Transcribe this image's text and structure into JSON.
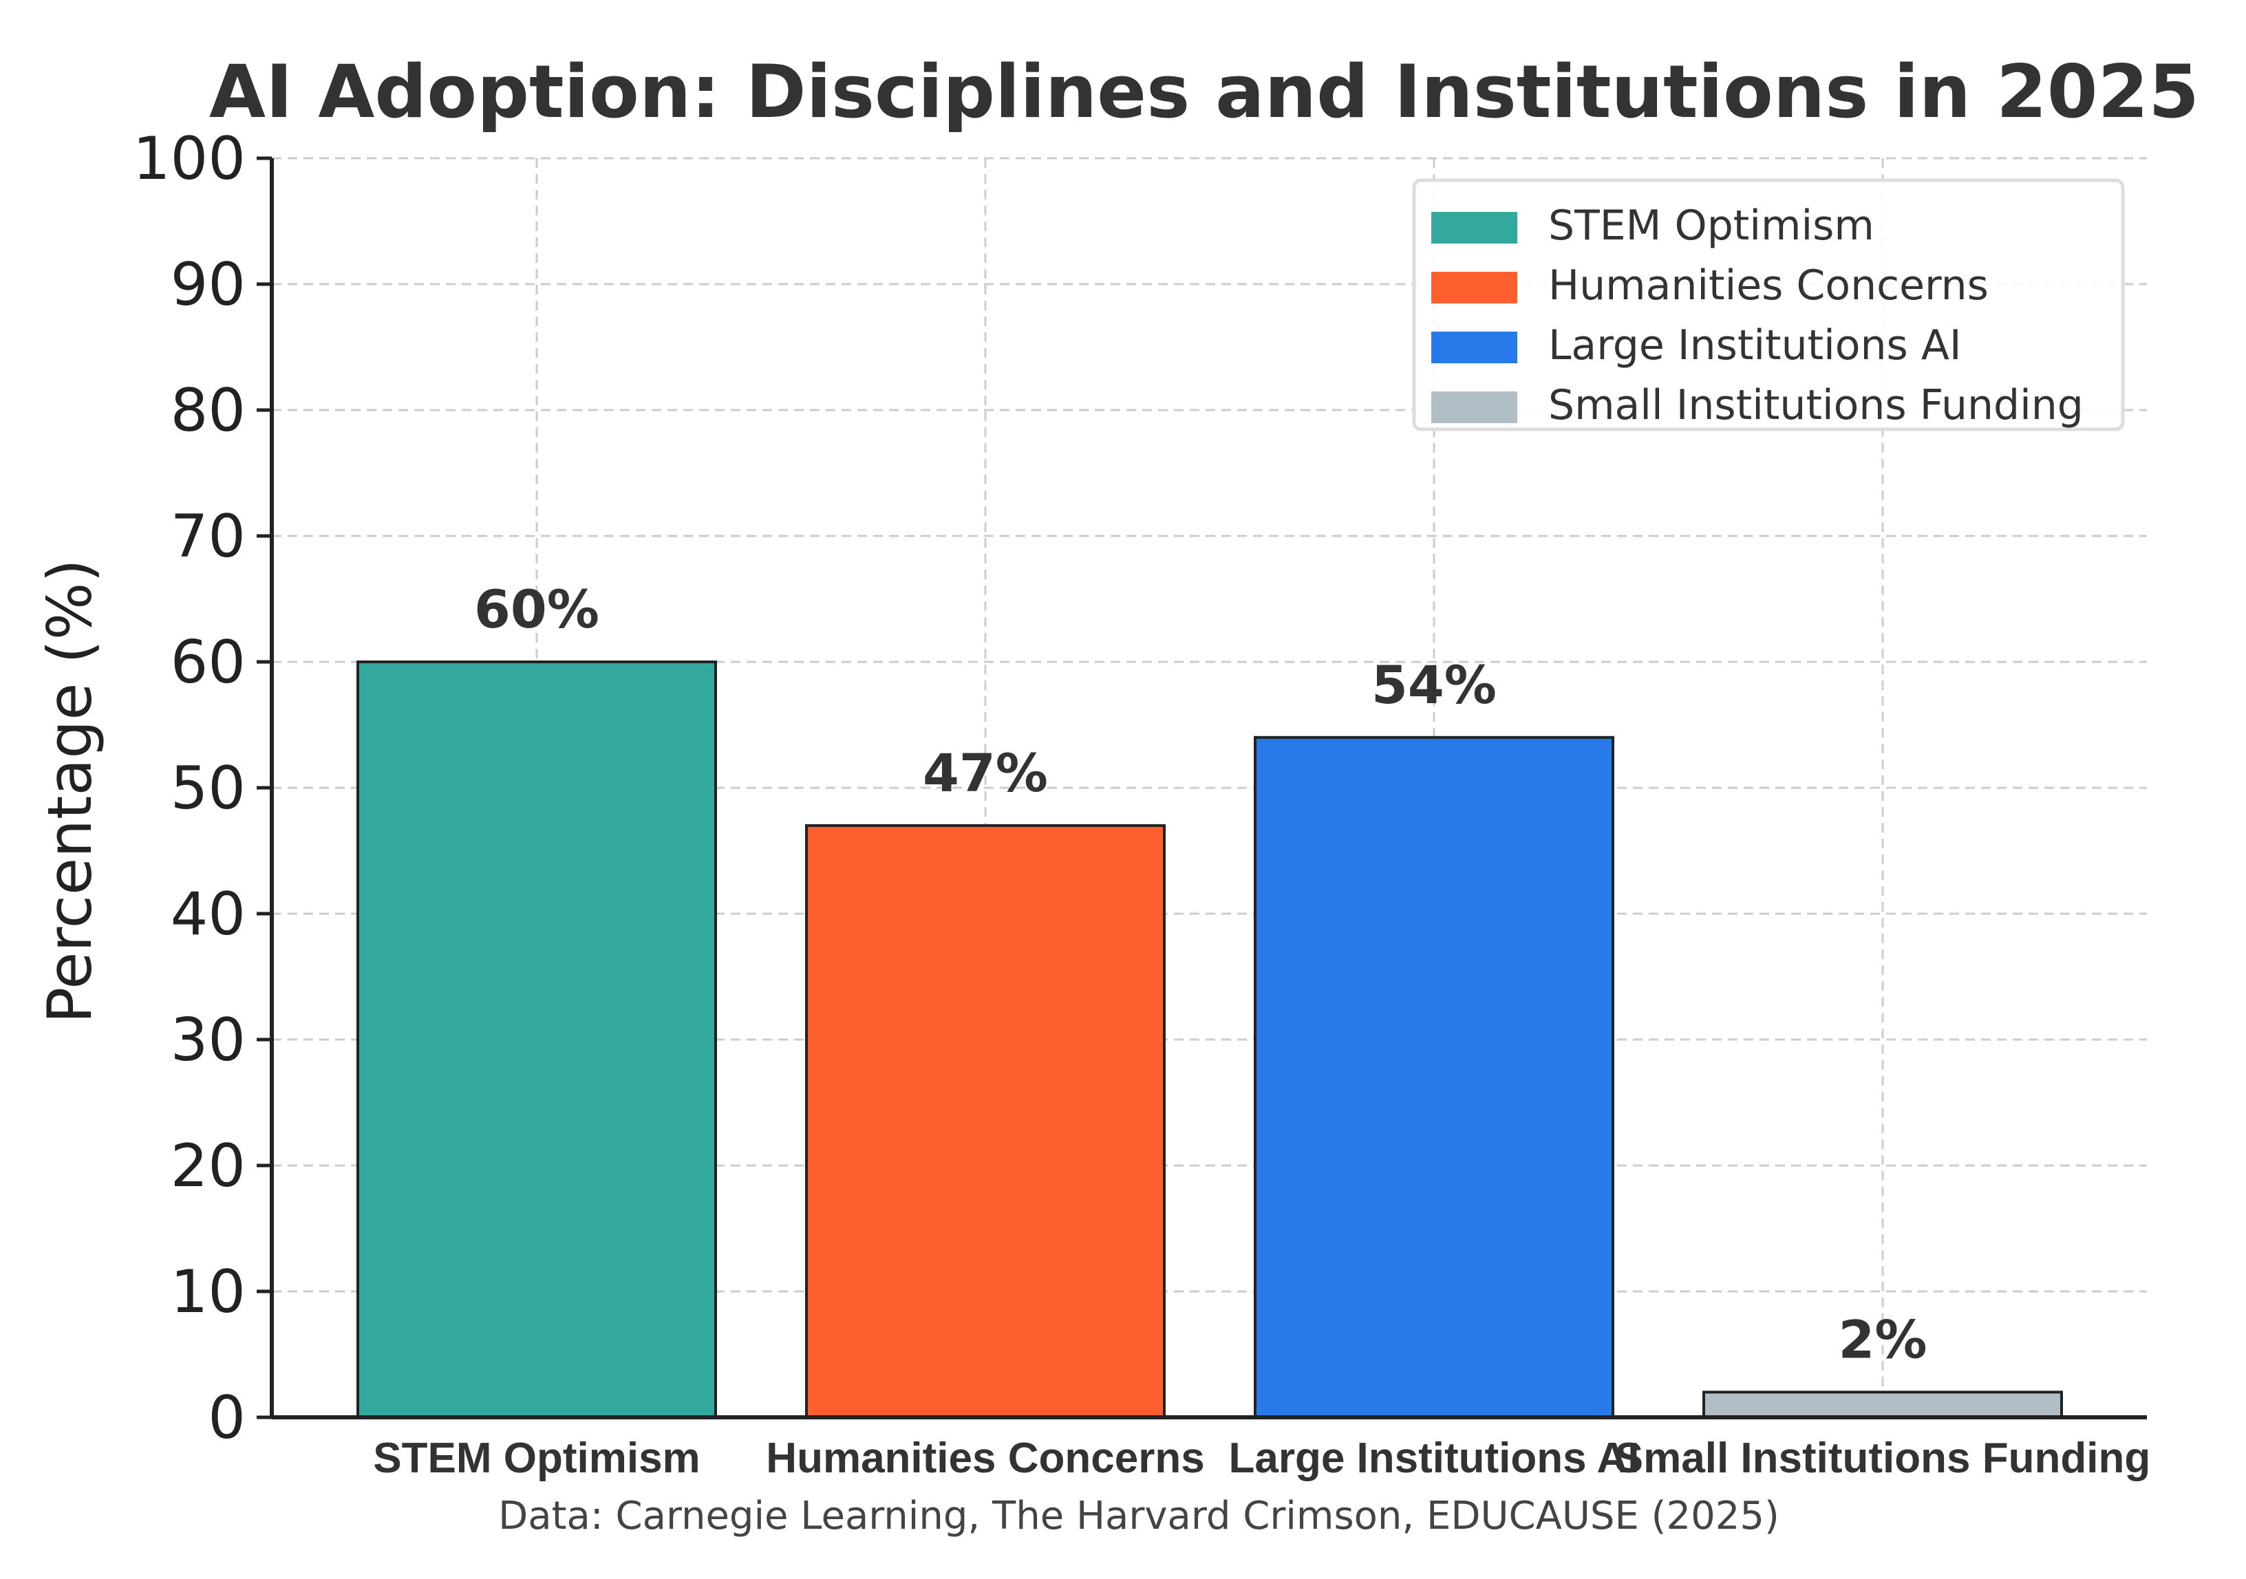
{
  "chart_data": {
    "type": "bar",
    "title": "AI Adoption: Disciplines and Institutions in 2025",
    "xlabel": "",
    "ylabel": "Percentage (%)",
    "ylim": [
      0,
      100
    ],
    "yticks": [
      0,
      10,
      20,
      30,
      40,
      50,
      60,
      70,
      80,
      90,
      100
    ],
    "categories": [
      "STEM Optimism",
      "Humanities Concerns",
      "Large Institutions AI",
      "Small Institutions Funding"
    ],
    "values": [
      60,
      47,
      54,
      2
    ],
    "value_labels": [
      "60%",
      "47%",
      "54%",
      "2%"
    ],
    "colors": [
      "#33a99e",
      "#ff5e2e",
      "#287ae8",
      "#b2bec6"
    ],
    "legend": {
      "placement": "top-right",
      "entries": [
        "STEM Optimism",
        "Humanities Concerns",
        "Large Institutions AI",
        "Small Institutions Funding"
      ]
    },
    "grid": true,
    "source_note": "Data: Carnegie Learning, The Harvard Crimson, EDUCAUSE (2025)"
  }
}
